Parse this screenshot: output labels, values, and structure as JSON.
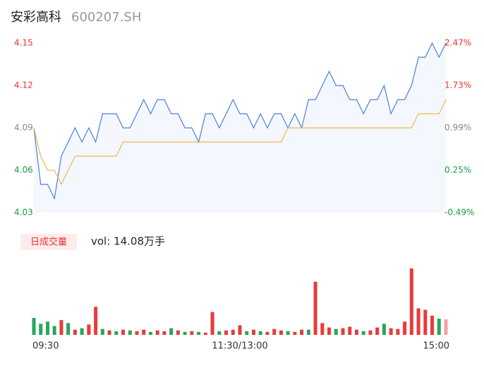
{
  "header": {
    "name": "安彩高科",
    "code": "600207.SH"
  },
  "volume_button": "日成交量",
  "volume_label": "vol: 14.08万手",
  "chart_data": [
    {
      "type": "line",
      "x": [
        0,
        4,
        8,
        12,
        16,
        20,
        24,
        28,
        32,
        36,
        40,
        44,
        48,
        52,
        56,
        60,
        64,
        68,
        72,
        76,
        80,
        84,
        88,
        92,
        96,
        100,
        104,
        108,
        112,
        116,
        120,
        124,
        128,
        132,
        136,
        140,
        144,
        148,
        152,
        156,
        160,
        164,
        168,
        172,
        176,
        180,
        184,
        188,
        192,
        196,
        200,
        204,
        208,
        212,
        216,
        220,
        224,
        228,
        232,
        236,
        240
      ],
      "series": [
        {
          "color": "#4a7fe0",
          "values": [
            4.09,
            4.05,
            4.05,
            4.04,
            4.07,
            4.08,
            4.09,
            4.08,
            4.09,
            4.08,
            4.1,
            4.1,
            4.1,
            4.09,
            4.09,
            4.1,
            4.11,
            4.1,
            4.11,
            4.11,
            4.1,
            4.1,
            4.09,
            4.09,
            4.08,
            4.1,
            4.1,
            4.09,
            4.1,
            4.11,
            4.1,
            4.1,
            4.09,
            4.1,
            4.09,
            4.1,
            4.1,
            4.09,
            4.1,
            4.09,
            4.11,
            4.11,
            4.12,
            4.13,
            4.12,
            4.12,
            4.11,
            4.11,
            4.1,
            4.11,
            4.11,
            4.12,
            4.1,
            4.11,
            4.11,
            4.12,
            4.14,
            4.14,
            4.15,
            4.14,
            4.15
          ]
        },
        {
          "color": "#f0b94a",
          "values": [
            4.09,
            4.07,
            4.06,
            4.06,
            4.05,
            4.06,
            4.07,
            4.07,
            4.07,
            4.07,
            4.07,
            4.07,
            4.07,
            4.08,
            4.08,
            4.08,
            4.08,
            4.08,
            4.08,
            4.08,
            4.08,
            4.08,
            4.08,
            4.08,
            4.08,
            4.08,
            4.08,
            4.08,
            4.08,
            4.08,
            4.08,
            4.08,
            4.08,
            4.08,
            4.08,
            4.08,
            4.08,
            4.09,
            4.09,
            4.09,
            4.09,
            4.09,
            4.09,
            4.09,
            4.09,
            4.09,
            4.09,
            4.09,
            4.09,
            4.09,
            4.09,
            4.09,
            4.09,
            4.09,
            4.09,
            4.09,
            4.1,
            4.1,
            4.1,
            4.1,
            4.11
          ]
        }
      ],
      "fill_color": "#f4f7fd",
      "xlim": [
        0,
        240
      ],
      "ylim": [
        4.03,
        4.15
      ],
      "yticks": [
        4.15,
        4.12,
        4.09,
        4.06,
        4.03
      ],
      "y2lim": [
        -0.49,
        2.47
      ],
      "y2ticks": [
        {
          "value": 2.47,
          "label": "2.47%"
        },
        {
          "value": 1.73,
          "label": "1.73%"
        },
        {
          "value": 0.99,
          "label": "0.99%"
        },
        {
          "value": 0.25,
          "label": "0.25%"
        },
        {
          "value": -0.49,
          "label": "-0.49%"
        }
      ],
      "tick_colors": [
        "#e8332e",
        "#e8332e",
        "#888888",
        "#1a9a4a",
        "#1a9a4a"
      ]
    },
    {
      "type": "bar",
      "x": [
        0,
        4,
        8,
        12,
        16,
        20,
        24,
        28,
        32,
        36,
        40,
        44,
        48,
        52,
        56,
        60,
        64,
        68,
        72,
        76,
        80,
        84,
        88,
        92,
        96,
        100,
        104,
        108,
        112,
        116,
        120,
        124,
        128,
        132,
        136,
        140,
        144,
        148,
        152,
        156,
        160,
        164,
        168,
        172,
        176,
        180,
        184,
        188,
        192,
        196,
        200,
        204,
        208,
        212,
        216,
        220,
        224,
        228,
        232,
        236,
        240
      ],
      "values": [
        2300,
        1500,
        1800,
        1200,
        2000,
        1600,
        700,
        900,
        1400,
        3800,
        800,
        600,
        500,
        700,
        600,
        500,
        700,
        400,
        600,
        500,
        900,
        600,
        400,
        500,
        400,
        300,
        3100,
        500,
        600,
        700,
        1300,
        500,
        700,
        500,
        400,
        800,
        600,
        500,
        400,
        700,
        700,
        7200,
        1600,
        1000,
        800,
        900,
        1100,
        700,
        500,
        600,
        1000,
        1500,
        900,
        800,
        1800,
        9000,
        3600,
        3400,
        2600,
        2200,
        2100
      ],
      "colors": [
        "#2aa55a",
        "#2aa55a",
        "#2aa55a",
        "#2aa55a",
        "#e83b3b",
        "#2aa55a",
        "#e83b3b",
        "#2aa55a",
        "#e83b3b",
        "#e83b3b",
        "#2aa55a",
        "#e83b3b",
        "#2aa55a",
        "#e83b3b",
        "#2aa55a",
        "#e83b3b",
        "#e83b3b",
        "#2aa55a",
        "#e83b3b",
        "#e83b3b",
        "#2aa55a",
        "#e83b3b",
        "#2aa55a",
        "#e83b3b",
        "#2aa55a",
        "#e83b3b",
        "#e83b3b",
        "#2aa55a",
        "#e83b3b",
        "#e83b3b",
        "#e83b3b",
        "#2aa55a",
        "#e83b3b",
        "#2aa55a",
        "#e83b3b",
        "#e83b3b",
        "#e83b3b",
        "#2aa55a",
        "#e83b3b",
        "#e83b3b",
        "#2aa55a",
        "#e83b3b",
        "#e83b3b",
        "#e83b3b",
        "#2aa55a",
        "#e83b3b",
        "#e83b3b",
        "#e83b3b",
        "#2aa55a",
        "#e83b3b",
        "#e83b3b",
        "#2aa55a",
        "#e83b3b",
        "#e83b3b",
        "#e83b3b",
        "#e83b3b",
        "#e83b3b",
        "#e83b3b",
        "#e83b3b",
        "#2aa55a",
        "#f4a0a0"
      ],
      "xlim": [
        0,
        240
      ],
      "ylim": [
        0,
        9000
      ],
      "xticks": [
        {
          "value": 0,
          "label": "09:30"
        },
        {
          "value": 120,
          "label": "11:30/13:00"
        },
        {
          "value": 240,
          "label": "15:00"
        }
      ]
    }
  ]
}
